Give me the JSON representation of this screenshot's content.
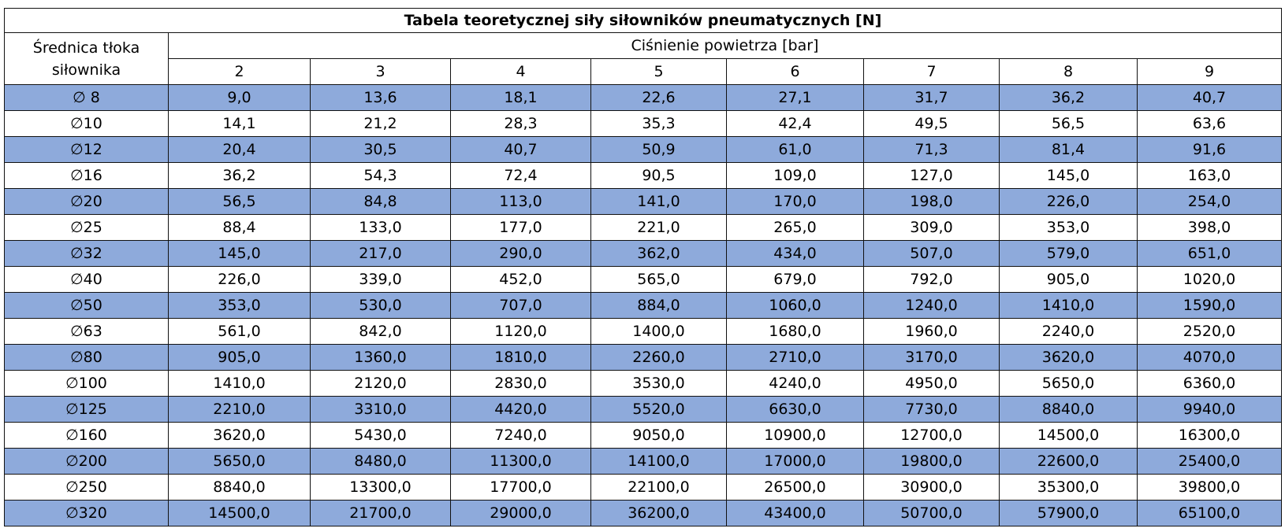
{
  "table": {
    "title": "Tabela teoretycznej siły siłowników pneumatycznych [N]",
    "row_header": "Średnica tłoka siłownika",
    "column_group": "Ciśnienie powietrza [bar]",
    "columns": [
      "2",
      "3",
      "4",
      "5",
      "6",
      "7",
      "8",
      "9"
    ],
    "rows": [
      [
        "∅ 8",
        "9,0",
        "13,6",
        "18,1",
        "22,6",
        "27,1",
        "31,7",
        "36,2",
        "40,7"
      ],
      [
        "∅10",
        "14,1",
        "21,2",
        "28,3",
        "35,3",
        "42,4",
        "49,5",
        "56,5",
        "63,6"
      ],
      [
        "∅12",
        "20,4",
        "30,5",
        "40,7",
        "50,9",
        "61,0",
        "71,3",
        "81,4",
        "91,6"
      ],
      [
        "∅16",
        "36,2",
        "54,3",
        "72,4",
        "90,5",
        "109,0",
        "127,0",
        "145,0",
        "163,0"
      ],
      [
        "∅20",
        "56,5",
        "84,8",
        "113,0",
        "141,0",
        "170,0",
        "198,0",
        "226,0",
        "254,0"
      ],
      [
        "∅25",
        "88,4",
        "133,0",
        "177,0",
        "221,0",
        "265,0",
        "309,0",
        "353,0",
        "398,0"
      ],
      [
        "∅32",
        "145,0",
        "217,0",
        "290,0",
        "362,0",
        "434,0",
        "507,0",
        "579,0",
        "651,0"
      ],
      [
        "∅40",
        "226,0",
        "339,0",
        "452,0",
        "565,0",
        "679,0",
        "792,0",
        "905,0",
        "1020,0"
      ],
      [
        "∅50",
        "353,0",
        "530,0",
        "707,0",
        "884,0",
        "1060,0",
        "1240,0",
        "1410,0",
        "1590,0"
      ],
      [
        "∅63",
        "561,0",
        "842,0",
        "1120,0",
        "1400,0",
        "1680,0",
        "1960,0",
        "2240,0",
        "2520,0"
      ],
      [
        "∅80",
        "905,0",
        "1360,0",
        "1810,0",
        "2260,0",
        "2710,0",
        "3170,0",
        "3620,0",
        "4070,0"
      ],
      [
        "∅100",
        "1410,0",
        "2120,0",
        "2830,0",
        "3530,0",
        "4240,0",
        "4950,0",
        "5650,0",
        "6360,0"
      ],
      [
        "∅125",
        "2210,0",
        "3310,0",
        "4420,0",
        "5520,0",
        "6630,0",
        "7730,0",
        "8840,0",
        "9940,0"
      ],
      [
        "∅160",
        "3620,0",
        "5430,0",
        "7240,0",
        "9050,0",
        "10900,0",
        "12700,0",
        "14500,0",
        "16300,0"
      ],
      [
        "∅200",
        "5650,0",
        "8480,0",
        "11300,0",
        "14100,0",
        "17000,0",
        "19800,0",
        "22600,0",
        "25400,0"
      ],
      [
        "∅250",
        "8840,0",
        "13300,0",
        "17700,0",
        "22100,0",
        "26500,0",
        "30900,0",
        "35300,0",
        "39800,0"
      ],
      [
        "∅320",
        "14500,0",
        "21700,0",
        "29000,0",
        "36200,0",
        "43400,0",
        "50700,0",
        "57900,0",
        "65100,0"
      ]
    ]
  }
}
